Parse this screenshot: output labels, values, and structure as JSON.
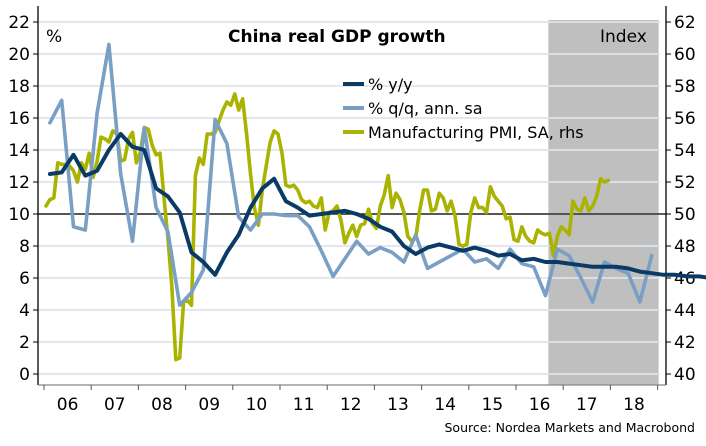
{
  "chart_data": {
    "type": "line",
    "title": "China real GDP growth",
    "left_axis_label": "%",
    "right_axis_label": "Index",
    "source": "Source: Nordea Markets and Macrobond",
    "ylim_left": [
      0,
      22
    ],
    "yticks_left": [
      "0",
      "2",
      "4",
      "6",
      "8",
      "10",
      "12",
      "14",
      "16",
      "18",
      "20",
      "22"
    ],
    "ylim_right": [
      40,
      62
    ],
    "yticks_right": [
      "40",
      "42",
      "44",
      "46",
      "48",
      "50",
      "52",
      "54",
      "56",
      "58",
      "60",
      "62"
    ],
    "xticks": [
      "06",
      "07",
      "08",
      "09",
      "10",
      "11",
      "12",
      "13",
      "14",
      "15",
      "16",
      "17",
      "18"
    ],
    "x_range": [
      "2006",
      "2019"
    ],
    "reference_line_right": 50,
    "shaded_region": {
      "from": "2016Q4",
      "to": "2018Q4",
      "meaning": "forecast"
    },
    "grid": true,
    "legend": "top-center",
    "colors": {
      "yy": "#0a3a66",
      "qq": "#7a9fc4",
      "pmi": "#a9b300",
      "shade": "#bfbfbf",
      "grid": "#e2e8ee"
    },
    "series": [
      {
        "name": "% y/y",
        "key": "yy",
        "axis": "left",
        "frequency": "quarterly",
        "start": "2006Q1",
        "values": [
          12.5,
          12.6,
          13.7,
          12.4,
          12.7,
          14.0,
          15.0,
          14.2,
          14.0,
          11.6,
          11.1,
          10.1,
          7.6,
          7.0,
          6.2,
          7.6,
          8.7,
          10.4,
          11.6,
          12.2,
          10.8,
          10.4,
          9.9,
          10.0,
          10.1,
          10.2,
          10.0,
          9.7,
          9.2,
          8.9,
          8.0,
          7.5,
          7.9,
          8.1,
          7.9,
          7.7,
          7.9,
          7.7,
          7.4,
          7.5,
          7.1,
          7.2,
          7.0,
          7.0,
          6.9,
          6.8,
          6.7,
          6.7,
          6.7,
          6.6,
          6.4,
          6.3,
          6.2,
          6.2,
          6.1,
          6.1,
          6.0,
          6.1,
          6.2,
          6.1,
          6.0,
          5.9
        ]
      },
      {
        "name": "% q/q, ann. sa",
        "key": "qq",
        "axis": "left",
        "frequency": "quarterly",
        "start": "2006Q1",
        "values": [
          15.7,
          17.1,
          9.2,
          9.0,
          16.3,
          20.6,
          12.5,
          8.3,
          15.4,
          10.4,
          8.9,
          4.3,
          5.1,
          6.5,
          15.9,
          14.4,
          9.8,
          9.0,
          10.0,
          10.0,
          9.9,
          9.9,
          9.2,
          7.7,
          6.1,
          7.2,
          8.3,
          7.5,
          7.9,
          7.6,
          7.0,
          8.7,
          6.6,
          7.0,
          7.4,
          7.8,
          7.0,
          7.2,
          6.6,
          7.8,
          6.9,
          6.7,
          4.9,
          7.8,
          7.4,
          6.0,
          4.5,
          7.0,
          6.6,
          6.3,
          4.5,
          7.4
        ]
      },
      {
        "name": "Manufacturing PMI, SA, rhs",
        "key": "pmi",
        "axis": "right",
        "frequency": "monthly",
        "start": "2006-01",
        "values": [
          50.5,
          50.9,
          51.0,
          53.2,
          53.1,
          53.1,
          53.0,
          52.7,
          52.0,
          53.2,
          52.8,
          53.8,
          52.3,
          53.3,
          54.8,
          54.7,
          54.5,
          55.2,
          55.0,
          53.3,
          53.4,
          54.7,
          55.1,
          53.2,
          53.9,
          55.4,
          55.3,
          54.3,
          53.7,
          53.8,
          51.0,
          48.5,
          45.5,
          40.9,
          41.0,
          44.5,
          44.6,
          44.3,
          52.4,
          53.5,
          53.1,
          55.0,
          55.0,
          55.1,
          55.8,
          56.5,
          57.0,
          56.8,
          57.5,
          56.5,
          57.2,
          55.0,
          52.5,
          50.4,
          49.3,
          51.5,
          53.0,
          54.5,
          55.2,
          55.0,
          53.8,
          51.8,
          51.7,
          51.8,
          51.5,
          50.9,
          50.7,
          50.8,
          50.5,
          50.4,
          51.0,
          49.0,
          50.1,
          50.2,
          50.5,
          49.6,
          48.2,
          48.8,
          49.3,
          48.6,
          49.3,
          49.4,
          50.3,
          49.4,
          49.1,
          50.5,
          51.2,
          52.4,
          50.4,
          51.3,
          50.9,
          50.1,
          48.6,
          48.3,
          48.5,
          50.2,
          51.5,
          51.5,
          50.2,
          50.3,
          51.3,
          51.0,
          50.2,
          50.8,
          49.9,
          48.1,
          48.0,
          48.1,
          50.1,
          51.0,
          50.4,
          50.4,
          50.1,
          51.7,
          51.1,
          50.8,
          50.5,
          49.7,
          49.8,
          48.4,
          48.3,
          49.2,
          48.6,
          48.3,
          48.2,
          49.0,
          48.8,
          48.7,
          48.8,
          47.4,
          48.6,
          49.2,
          49.0,
          48.7,
          50.8,
          50.3,
          50.2,
          51.0,
          50.2,
          50.5,
          51.1,
          52.2,
          52.0,
          52.1
        ]
      }
    ]
  }
}
